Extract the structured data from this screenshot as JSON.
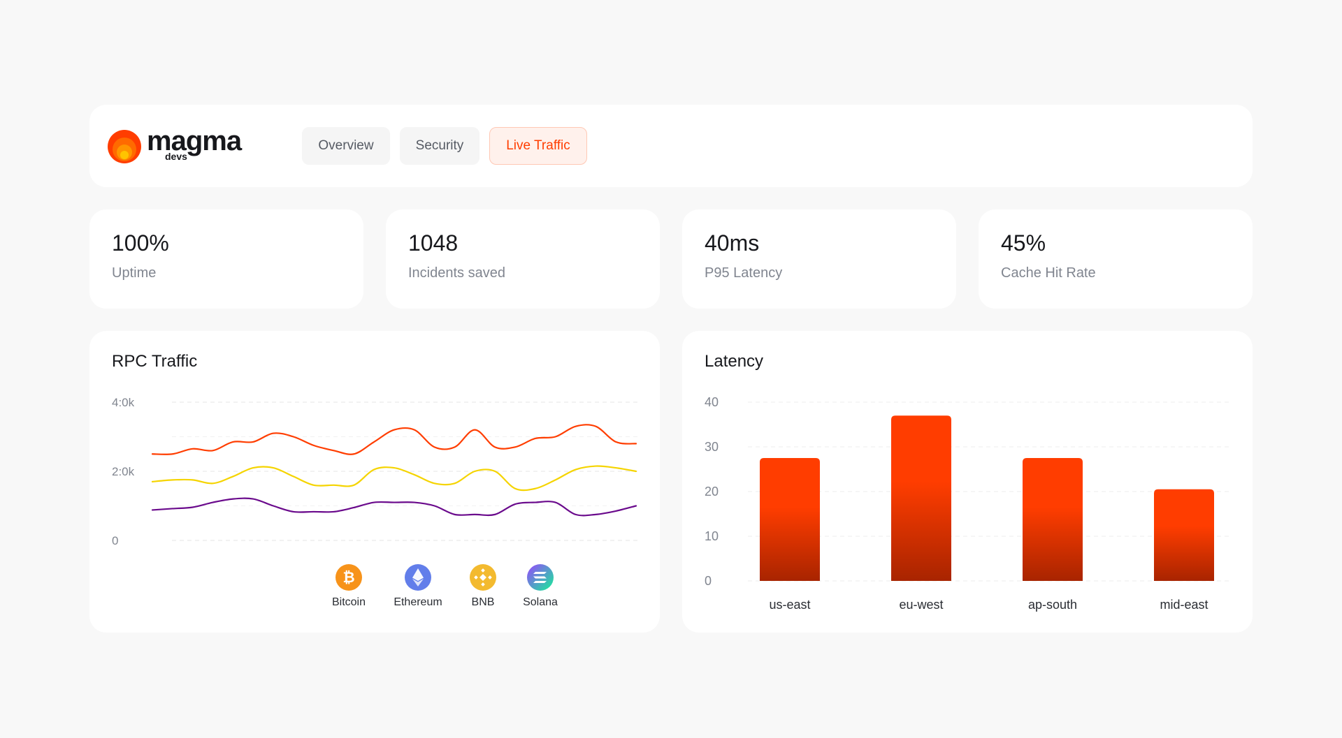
{
  "brand": {
    "name": "magma",
    "sub": "devs"
  },
  "tabs": [
    {
      "label": "Overview",
      "active": false
    },
    {
      "label": "Security",
      "active": false
    },
    {
      "label": "Live Traffic",
      "active": true
    }
  ],
  "stats": [
    {
      "value": "100%",
      "label": "Uptime"
    },
    {
      "value": "1048",
      "label": "Incidents saved"
    },
    {
      "value": "40ms",
      "label": "P95 Latency"
    },
    {
      "value": "45%",
      "label": "Cache Hit Rate"
    }
  ],
  "colors": {
    "accent": "#ff3d00",
    "bitcoin_line": "#ff3d00",
    "ethereum_line": "#f5d400",
    "bnb_line": "#6a0a8c",
    "bar_top": "#ff3d00",
    "bar_bottom": "#a82400"
  },
  "legend": [
    {
      "label": "Bitcoin",
      "icon": "bitcoin-icon",
      "color": "#f7931a"
    },
    {
      "label": "Ethereum",
      "icon": "ethereum-icon",
      "color": "#627eea"
    },
    {
      "label": "BNB",
      "icon": "bnb-icon",
      "color": "#f3ba2f"
    },
    {
      "label": "Solana",
      "icon": "solana-icon",
      "color": "#9945ff"
    }
  ],
  "chart_data": [
    {
      "type": "line",
      "title": "RPC Traffic",
      "ytick_labels": [
        "0",
        "2:0k",
        "4:0k"
      ],
      "ylim": [
        0,
        4000
      ],
      "grid": true,
      "legend_position": "bottom-center",
      "series": [
        {
          "color": "#ff3d00",
          "values": [
            2500,
            2500,
            2650,
            2600,
            2850,
            2850,
            3100,
            3000,
            2750,
            2600,
            2500,
            2850,
            3200,
            3200,
            2700,
            2700,
            3200,
            2700,
            2700,
            2950,
            3000,
            3300,
            3300,
            2850,
            2800
          ]
        },
        {
          "color": "#f5d400",
          "values": [
            1700,
            1750,
            1750,
            1650,
            1850,
            2100,
            2100,
            1850,
            1600,
            1600,
            1600,
            2050,
            2100,
            1900,
            1650,
            1650,
            2000,
            2000,
            1500,
            1500,
            1750,
            2050,
            2150,
            2100,
            2000
          ]
        },
        {
          "color": "#6a0a8c",
          "values": [
            880,
            920,
            960,
            1100,
            1200,
            1200,
            1000,
            830,
            830,
            830,
            950,
            1100,
            1100,
            1100,
            1000,
            750,
            750,
            750,
            1050,
            1100,
            1100,
            750,
            750,
            850,
            1000
          ]
        }
      ]
    },
    {
      "type": "bar",
      "title": "Latency",
      "categories": [
        "us-east",
        "eu-west",
        "ap-south",
        "mid-east"
      ],
      "values": [
        27.5,
        37,
        27.5,
        20.5
      ],
      "ylim": [
        0,
        40
      ],
      "yticks": [
        0,
        10,
        20,
        30,
        40
      ],
      "grid": true
    }
  ]
}
